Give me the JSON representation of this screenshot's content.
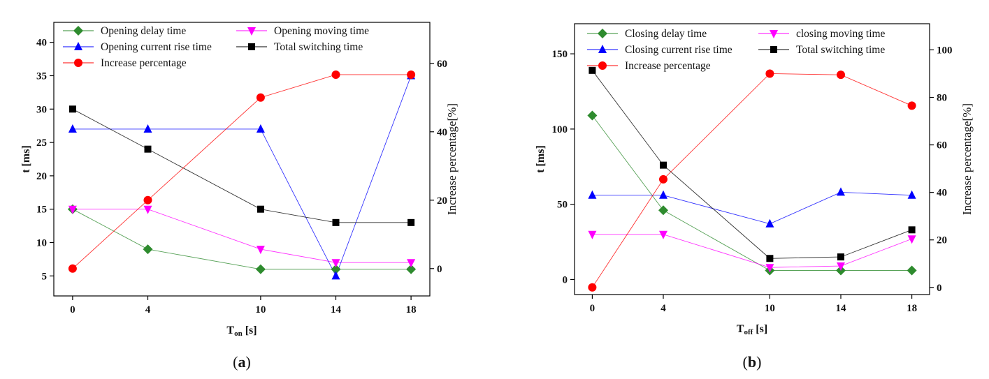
{
  "chart_data": [
    {
      "type": "line",
      "panel_label": "a",
      "xlabel_main": "T",
      "xlabel_sub": "on",
      "xlabel_unit": " [s]",
      "ylabel": "t [ms]",
      "y2label": "Increase percentage[%]",
      "xlim": [
        -1,
        19
      ],
      "ylim": [
        2,
        43
      ],
      "y2lim": [
        -8,
        72
      ],
      "x": [
        0,
        4,
        10,
        14,
        18
      ],
      "xticks": [
        "0",
        "4",
        "10",
        "14",
        "18"
      ],
      "yticks": [
        5,
        10,
        15,
        20,
        25,
        30,
        35,
        40
      ],
      "y2ticks": [
        0,
        20,
        40,
        60
      ],
      "series": [
        {
          "name": "Opening delay time",
          "axis": "left",
          "color": "#2e8b2e",
          "marker": "diamond",
          "values": [
            15,
            9,
            6,
            6,
            6
          ]
        },
        {
          "name": "Opening moving time",
          "axis": "left",
          "color": "#ff00ff",
          "marker": "triangle-down",
          "values": [
            15,
            15,
            9,
            7,
            7
          ]
        },
        {
          "name": "Opening current rise time",
          "axis": "left",
          "color": "#0000ff",
          "marker": "triangle-up",
          "values": [
            27,
            27,
            27,
            5,
            35
          ]
        },
        {
          "name": "Total switching time",
          "axis": "left",
          "color": "#000000",
          "marker": "square",
          "values": [
            30,
            24,
            15,
            13,
            13
          ]
        },
        {
          "name": "Increase percentage",
          "axis": "right",
          "color": "#ff0000",
          "marker": "circle",
          "values": [
            0,
            20,
            50,
            56.7,
            56.7
          ]
        }
      ]
    },
    {
      "type": "line",
      "panel_label": "b",
      "xlabel_main": "T",
      "xlabel_sub": "off",
      "xlabel_unit": " [s]",
      "ylabel": "t [ms]",
      "y2label": "Increase percentage[%]",
      "xlim": [
        -1,
        19
      ],
      "ylim": [
        -10,
        170
      ],
      "y2lim": [
        -3,
        111
      ],
      "x": [
        0,
        4,
        10,
        14,
        18
      ],
      "xticks": [
        "0",
        "4",
        "10",
        "14",
        "18"
      ],
      "yticks": [
        0,
        50,
        100,
        150
      ],
      "y2ticks": [
        0,
        20,
        40,
        60,
        80,
        100
      ],
      "series": [
        {
          "name": "Closing delay time",
          "axis": "left",
          "color": "#2e8b2e",
          "marker": "diamond",
          "values": [
            109,
            46,
            6,
            6,
            6
          ]
        },
        {
          "name": "closing moving time",
          "axis": "left",
          "color": "#ff00ff",
          "marker": "triangle-down",
          "values": [
            30,
            30,
            8,
            9,
            27
          ]
        },
        {
          "name": "Closing current rise time",
          "axis": "left",
          "color": "#0000ff",
          "marker": "triangle-up",
          "values": [
            56,
            56,
            37,
            58,
            56
          ]
        },
        {
          "name": "Total switching time",
          "axis": "left",
          "color": "#000000",
          "marker": "square",
          "values": [
            139,
            76,
            14,
            15,
            33
          ]
        },
        {
          "name": "Increase percentage",
          "axis": "right",
          "color": "#ff0000",
          "marker": "circle",
          "values": [
            0,
            45.5,
            90,
            89.5,
            76.5
          ]
        }
      ]
    }
  ]
}
